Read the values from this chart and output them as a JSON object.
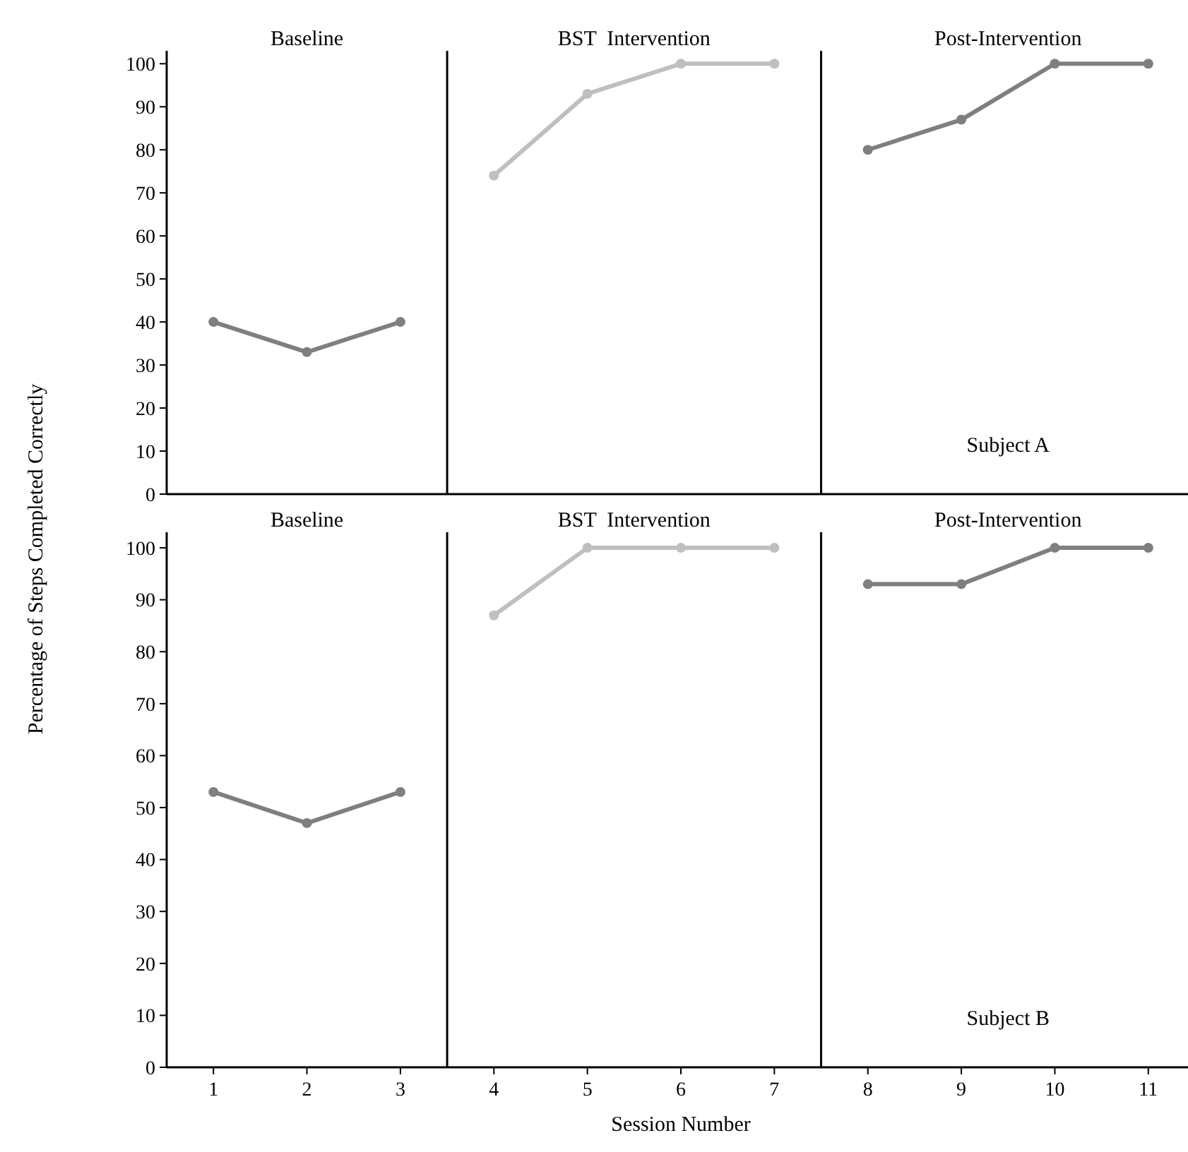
{
  "chart_data": [
    {
      "type": "line",
      "ylabel": "Percentage of Steps Completed Correctly",
      "xlim": [
        0.5,
        11.5
      ],
      "xticks": [
        1,
        2,
        3,
        4,
        5,
        6,
        7,
        8,
        9,
        10,
        11
      ],
      "ylim": [
        0,
        103
      ],
      "yticks": [
        0,
        10,
        20,
        30,
        40,
        50,
        60,
        70,
        80,
        90,
        100
      ],
      "tick_labels": "y",
      "marker": "circle",
      "line_style": "solid",
      "series": [
        {
          "color": "#7f7f7f",
          "x": [
            1,
            2,
            3
          ],
          "values": [
            40,
            33,
            40
          ]
        },
        {
          "color": "#bfbfbf",
          "x": [
            4,
            5,
            6,
            7
          ],
          "values": [
            74,
            93,
            100,
            100
          ]
        },
        {
          "color": "#7f7f7f",
          "x": [
            8,
            9,
            10,
            11
          ],
          "values": [
            80,
            87,
            100,
            100
          ]
        }
      ],
      "ref_lines": [
        {
          "axis": "x",
          "value": 3.5,
          "color": "#000000"
        },
        {
          "axis": "x",
          "value": 7.5,
          "color": "#000000"
        }
      ],
      "annotations": [
        "Baseline",
        "BST  Intervention",
        "Post-Intervention",
        "Subject A"
      ]
    },
    {
      "type": "line",
      "xlabel": "Session Number",
      "xlim": [
        0.5,
        11.5
      ],
      "xticks": [
        1,
        2,
        3,
        4,
        5,
        6,
        7,
        8,
        9,
        10,
        11
      ],
      "ylim": [
        0,
        103
      ],
      "yticks": [
        0,
        10,
        20,
        30,
        40,
        50,
        60,
        70,
        80,
        90,
        100
      ],
      "marker": "circle",
      "line_style": "solid",
      "series": [
        {
          "color": "#7f7f7f",
          "x": [
            1,
            2,
            3
          ],
          "values": [
            53,
            47,
            53
          ]
        },
        {
          "color": "#bfbfbf",
          "x": [
            4,
            5,
            6,
            7
          ],
          "values": [
            87,
            100,
            100,
            100
          ]
        },
        {
          "color": "#7f7f7f",
          "x": [
            8,
            9,
            10,
            11
          ],
          "values": [
            93,
            93,
            100,
            100
          ]
        }
      ],
      "ref_lines": [
        {
          "axis": "x",
          "value": 3.5,
          "color": "#000000"
        },
        {
          "axis": "x",
          "value": 7.5,
          "color": "#000000"
        }
      ],
      "annotations": [
        "Baseline",
        "BST  Intervention",
        "Post-Intervention",
        "Subject B"
      ]
    }
  ]
}
